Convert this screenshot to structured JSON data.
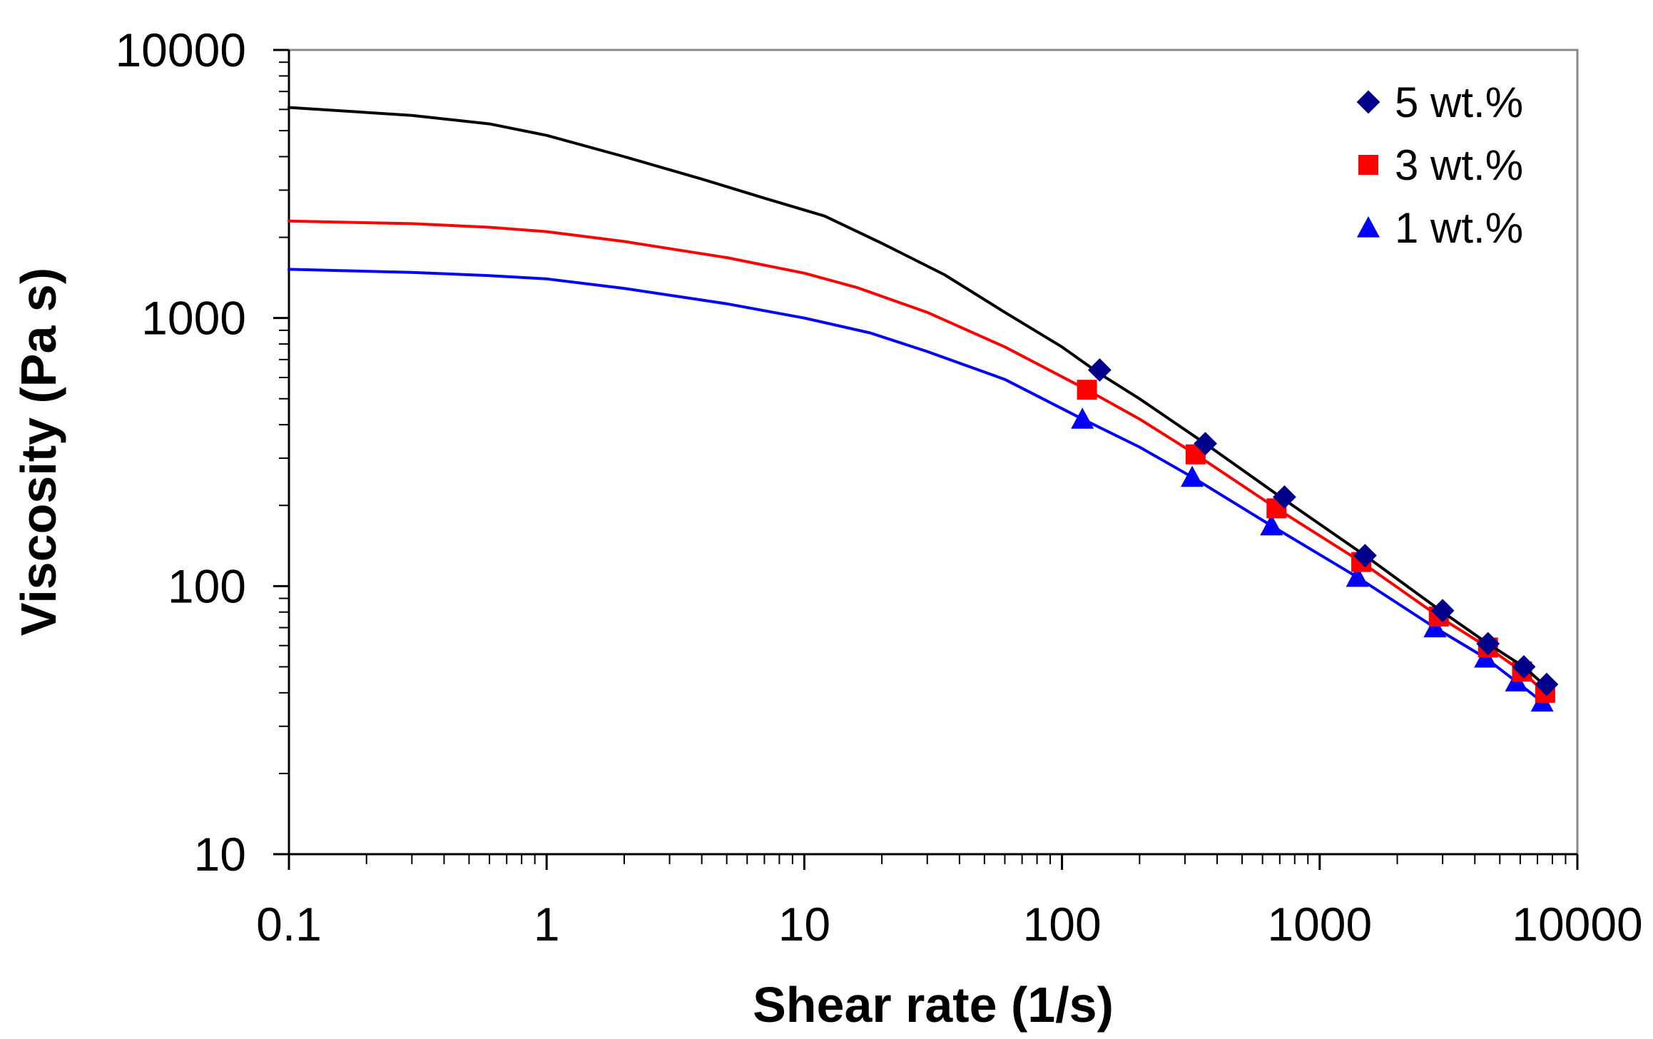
{
  "chart_data": {
    "type": "line",
    "title": "",
    "xlabel": "Shear rate (1/s)",
    "ylabel": "Viscosity (Pa s)",
    "xscale": "log",
    "yscale": "log",
    "xlim": [
      0.1,
      10000
    ],
    "ylim": [
      10,
      10000
    ],
    "grid": false,
    "legend_position": "top-right",
    "x_ticks": [
      0.1,
      1,
      10,
      100,
      1000,
      10000
    ],
    "x_tick_labels": [
      "0.1",
      "1",
      "10",
      "100",
      "1000",
      "10000"
    ],
    "y_ticks": [
      10,
      100,
      1000,
      10000
    ],
    "y_tick_labels": [
      "10",
      "100",
      "1000",
      "10000"
    ],
    "series": [
      {
        "name": "5 wt.%",
        "color": "#000000",
        "marker": "diamond",
        "marker_color": "#00008B",
        "curve": [
          [
            0.1,
            6100
          ],
          [
            0.3,
            5700
          ],
          [
            0.6,
            5300
          ],
          [
            1,
            4800
          ],
          [
            2,
            4000
          ],
          [
            4,
            3300
          ],
          [
            7,
            2800
          ],
          [
            12,
            2400
          ],
          [
            20,
            1900
          ],
          [
            35,
            1450
          ],
          [
            60,
            1050
          ],
          [
            100,
            780
          ],
          [
            140,
            620
          ],
          [
            200,
            500
          ],
          [
            360,
            340
          ],
          [
            730,
            210
          ],
          [
            1500,
            130
          ],
          [
            3000,
            80
          ],
          [
            4500,
            61
          ],
          [
            6200,
            50
          ],
          [
            7600,
            42
          ]
        ],
        "points": [
          [
            140,
            640
          ],
          [
            360,
            340
          ],
          [
            730,
            215
          ],
          [
            1500,
            130
          ],
          [
            3000,
            81
          ],
          [
            4500,
            61
          ],
          [
            6200,
            50
          ],
          [
            7600,
            43
          ]
        ]
      },
      {
        "name": "3 wt.%",
        "color": "#FF0000",
        "marker": "square",
        "marker_color": "#FF0000",
        "curve": [
          [
            0.1,
            2300
          ],
          [
            0.3,
            2250
          ],
          [
            0.6,
            2180
          ],
          [
            1,
            2100
          ],
          [
            2,
            1930
          ],
          [
            5,
            1680
          ],
          [
            10,
            1470
          ],
          [
            16,
            1300
          ],
          [
            30,
            1050
          ],
          [
            60,
            780
          ],
          [
            125,
            540
          ],
          [
            200,
            420
          ],
          [
            330,
            310
          ],
          [
            680,
            195
          ],
          [
            1450,
            123
          ],
          [
            2900,
            77
          ],
          [
            4500,
            59
          ],
          [
            6100,
            48
          ],
          [
            7500,
            40
          ]
        ],
        "points": [
          [
            125,
            540
          ],
          [
            330,
            310
          ],
          [
            680,
            195
          ],
          [
            1450,
            123
          ],
          [
            2900,
            77
          ],
          [
            4500,
            59
          ],
          [
            6100,
            48
          ],
          [
            7500,
            40
          ]
        ]
      },
      {
        "name": "1 wt.%",
        "color": "#0000FF",
        "marker": "triangle",
        "marker_color": "#0000FF",
        "curve": [
          [
            0.1,
            1520
          ],
          [
            0.3,
            1480
          ],
          [
            0.6,
            1440
          ],
          [
            1,
            1400
          ],
          [
            2,
            1290
          ],
          [
            5,
            1130
          ],
          [
            10,
            1000
          ],
          [
            18,
            880
          ],
          [
            30,
            750
          ],
          [
            60,
            590
          ],
          [
            120,
            420
          ],
          [
            200,
            330
          ],
          [
            320,
            255
          ],
          [
            650,
            168
          ],
          [
            1400,
            108
          ],
          [
            2800,
            70
          ],
          [
            4400,
            54
          ],
          [
            5800,
            44
          ],
          [
            7300,
            37
          ]
        ],
        "points": [
          [
            120,
            420
          ],
          [
            320,
            255
          ],
          [
            650,
            168
          ],
          [
            1400,
            108
          ],
          [
            2800,
            70
          ],
          [
            4400,
            54
          ],
          [
            5800,
            44
          ],
          [
            7300,
            37
          ]
        ]
      }
    ]
  }
}
